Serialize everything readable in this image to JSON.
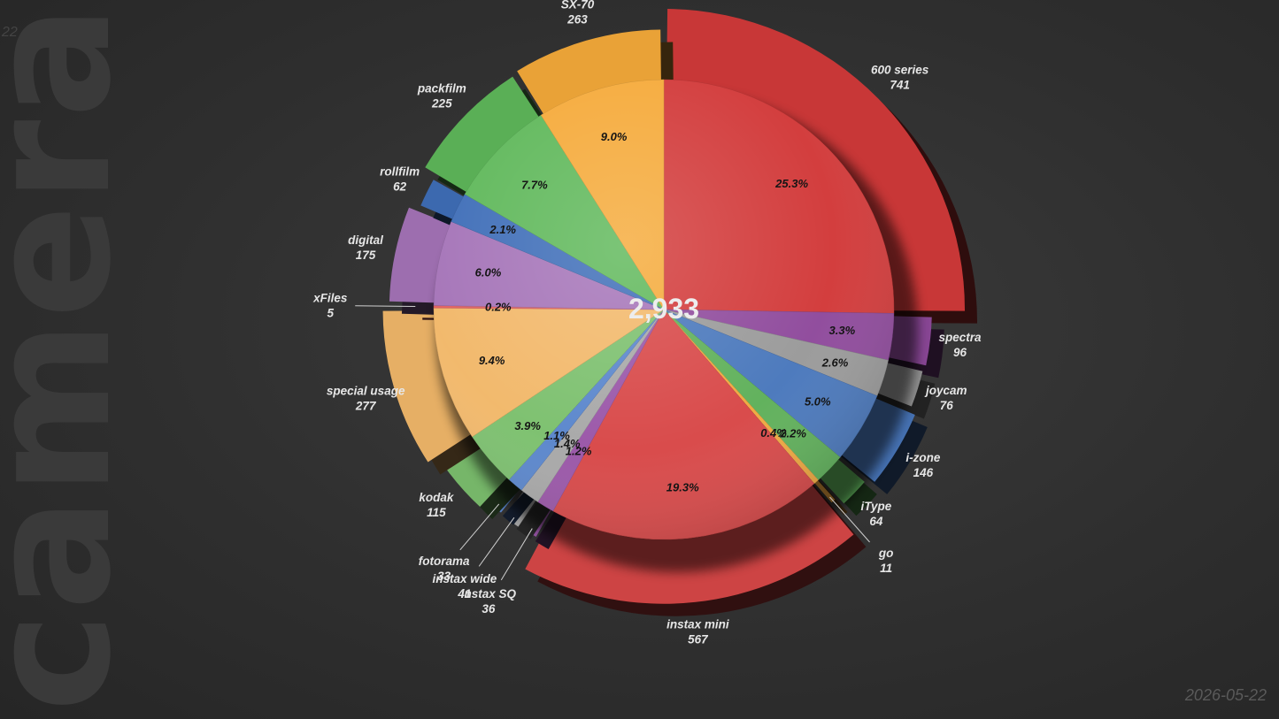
{
  "watermark": "camera",
  "corner_number": "22",
  "date": "2026-05-22",
  "chart_data": {
    "type": "pie",
    "total_label": "2,933",
    "start_clockwise_from_top": true,
    "slices": [
      {
        "name": "600 series",
        "value": 741,
        "percent": "25.3%",
        "color": "#d23a3a"
      },
      {
        "name": "spectra",
        "value": 96,
        "percent": "3.3%",
        "color": "#8f4a9c"
      },
      {
        "name": "joycam",
        "value": 76,
        "percent": "2.6%",
        "color": "#9a9a9a"
      },
      {
        "name": "i-zone",
        "value": 146,
        "percent": "5.0%",
        "color": "#4a78bc"
      },
      {
        "name": "iType",
        "value": 64,
        "percent": "2.2%",
        "color": "#5fb05a"
      },
      {
        "name": "go",
        "value": 11,
        "percent": "0.4%",
        "color": "#f0a840"
      },
      {
        "name": "instax mini",
        "value": 567,
        "percent": "19.3%",
        "color": "#d84848"
      },
      {
        "name": "instax SQ",
        "value": 36,
        "percent": "1.2%",
        "color": "#9a56a8"
      },
      {
        "name": "instax wide",
        "value": 41,
        "percent": "1.4%",
        "color": "#a8a8a8"
      },
      {
        "name": "fotorama",
        "value": 33,
        "percent": "1.1%",
        "color": "#5a86cc"
      },
      {
        "name": "kodak",
        "value": 115,
        "percent": "3.9%",
        "color": "#7cc06e"
      },
      {
        "name": "special usage",
        "value": 277,
        "percent": "9.4%",
        "color": "#f2b86a"
      },
      {
        "name": "xFiles",
        "value": 5,
        "percent": "0.2%",
        "color": "#e06060"
      },
      {
        "name": "digital",
        "value": 175,
        "percent": "6.0%",
        "color": "#a574b8"
      },
      {
        "name": "rollfilm",
        "value": 62,
        "percent": "2.1%",
        "color": "#3f6eb8"
      },
      {
        "name": "packfilm",
        "value": 225,
        "percent": "7.7%",
        "color": "#5fb85a"
      },
      {
        "name": "SX-70",
        "value": 263,
        "percent": "9.0%",
        "color": "#f5aa3a"
      }
    ]
  }
}
